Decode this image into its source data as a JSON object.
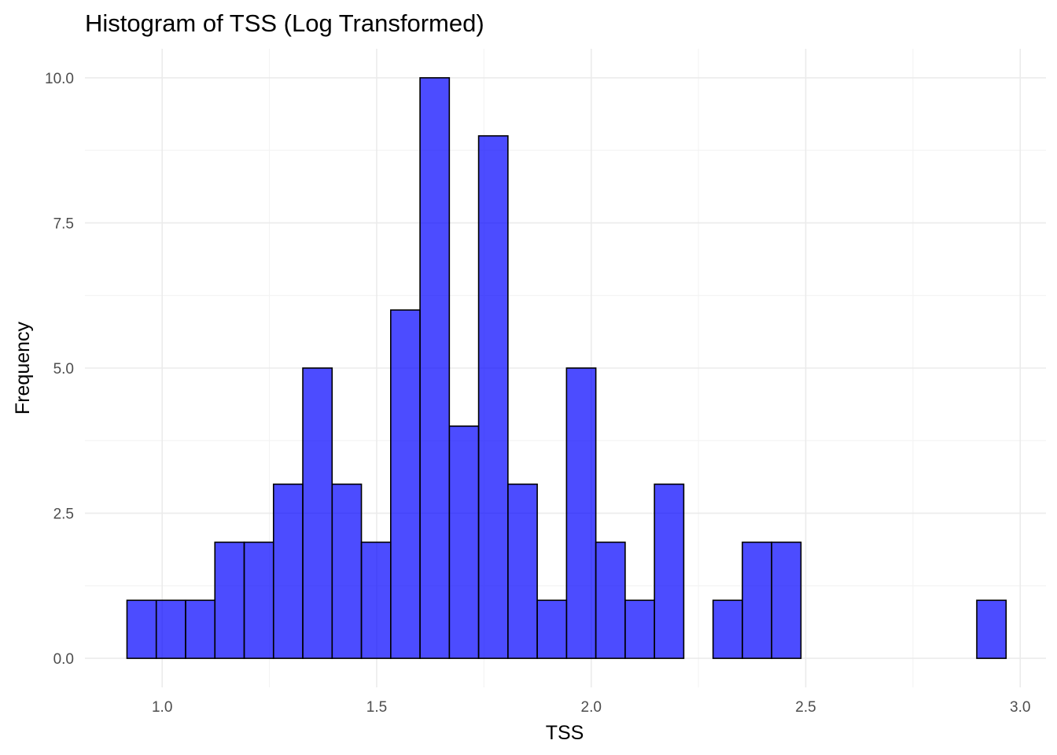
{
  "chart_data": {
    "type": "bar",
    "subtype": "histogram",
    "title": "Histogram of TSS (Log Transformed)",
    "xlabel": "TSS",
    "ylabel": "Frequency",
    "xlim": [
      0.82,
      3.06
    ],
    "ylim": [
      -0.5,
      10.5
    ],
    "x_ticks": [
      1.0,
      1.5,
      2.0,
      2.5,
      3.0
    ],
    "x_tick_labels": [
      "1.0",
      "1.5",
      "2.0",
      "2.5",
      "3.0"
    ],
    "y_ticks": [
      0.0,
      2.5,
      5.0,
      7.5,
      10.0
    ],
    "y_tick_labels": [
      "0.0",
      "2.5",
      "5.0",
      "7.5",
      "10.0"
    ],
    "bin_start": 0.918,
    "bin_width": 0.0683,
    "bin_counts": [
      1,
      1,
      1,
      2,
      2,
      3,
      5,
      3,
      2,
      6,
      10,
      4,
      9,
      3,
      1,
      5,
      2,
      1,
      3,
      0,
      1,
      2,
      2,
      0,
      0,
      0,
      0,
      0,
      0,
      1
    ],
    "fill_color": "#0000ff",
    "fill_opacity": 0.7,
    "edge_color": "#000000",
    "grid": true,
    "legend": "none"
  }
}
